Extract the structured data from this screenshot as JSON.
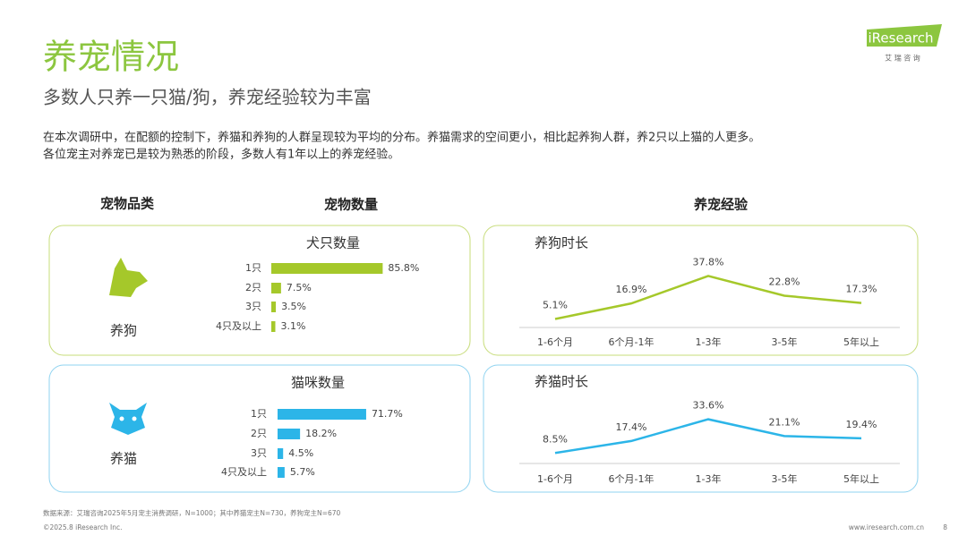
{
  "header": {
    "title": "养宠情况",
    "subtitle": "多数人只养一只猫/狗，养宠经验较为丰富",
    "description": [
      "在本次调研中，在配额的控制下，养猫和养狗的人群呈现较为平均的分布。养猫需求的空间更小，相比起养狗人群，养2只以上猫的人更多。",
      "各位宠主对养宠已是较为熟悉的阶段，多数人有1年以上的养宠经验。"
    ]
  },
  "logo": {
    "name": "iResearch",
    "sub": "艾 瑞 咨 询"
  },
  "columns": [
    "宠物品类",
    "宠物数量",
    "养宠经验"
  ],
  "pets": [
    "养狗",
    "养猫"
  ],
  "chart_data": [
    {
      "type": "hbar",
      "title": "犬只数量",
      "categories": [
        "1只",
        "2只",
        "3只",
        "4只及以上"
      ],
      "values": [
        85.8,
        7.5,
        3.5,
        3.1
      ],
      "value_labels": [
        "85.8%",
        "7.5%",
        "3.5%",
        "3.1%"
      ],
      "color": "#a5c82a"
    },
    {
      "type": "hbar",
      "title": "猫咪数量",
      "categories": [
        "1只",
        "2只",
        "3只",
        "4只及以上"
      ],
      "values": [
        71.7,
        18.2,
        4.5,
        5.7
      ],
      "value_labels": [
        "71.7%",
        "18.2%",
        "4.5%",
        "5.7%"
      ],
      "color": "#2cb5e8"
    },
    {
      "type": "line",
      "title": "养狗时长",
      "categories": [
        "1-6个月",
        "6个月-1年",
        "1-3年",
        "3-5年",
        "5年以上"
      ],
      "values": [
        5.1,
        16.9,
        37.8,
        22.8,
        17.3
      ],
      "value_labels": [
        "5.1%",
        "16.9%",
        "37.8%",
        "22.8%",
        "17.3%"
      ],
      "color": "#a5c82a"
    },
    {
      "type": "line",
      "title": "养猫时长",
      "categories": [
        "1-6个月",
        "6个月-1年",
        "1-3年",
        "3-5年",
        "5年以上"
      ],
      "values": [
        8.5,
        17.4,
        33.6,
        21.1,
        19.4
      ],
      "value_labels": [
        "8.5%",
        "17.4%",
        "33.6%",
        "21.1%",
        "19.4%"
      ],
      "color": "#2cb5e8"
    }
  ],
  "footer": {
    "source": "数据来源：艾瑞咨询2025年5月宠主消费调研，N=1000；其中养猫宠主N=730，养狗宠主N=670",
    "copyright": "©2025.8 iResearch Inc.",
    "url": "www.iresearch.com.cn",
    "page": "8"
  }
}
